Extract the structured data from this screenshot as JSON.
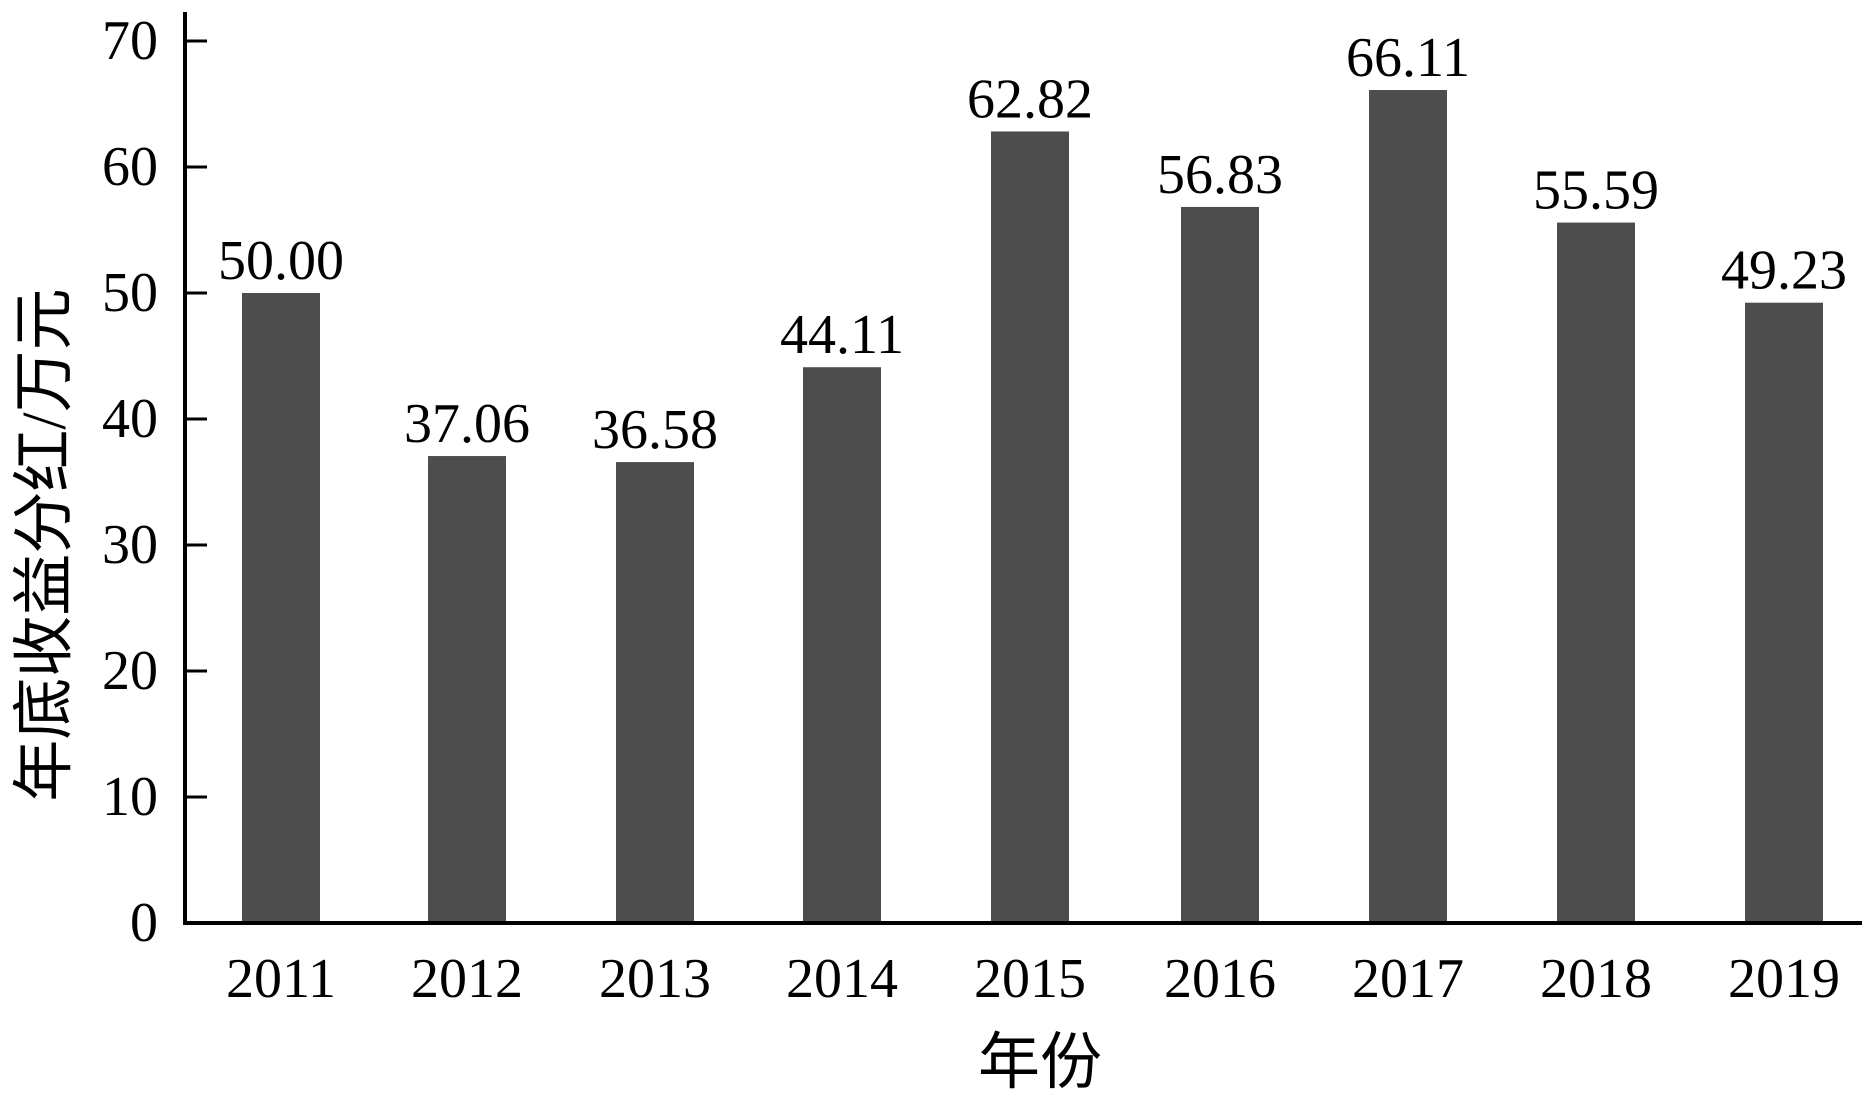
{
  "chart_data": {
    "type": "bar",
    "title": "",
    "xlabel": "年份",
    "ylabel": "年底收益分红/万元",
    "categories": [
      "2011",
      "2012",
      "2013",
      "2014",
      "2015",
      "2016",
      "2017",
      "2018",
      "2019"
    ],
    "values": [
      50.0,
      37.06,
      36.58,
      44.11,
      62.82,
      56.83,
      66.11,
      55.59,
      49.23
    ],
    "value_labels": [
      "50.00",
      "37.06",
      "36.58",
      "44.11",
      "62.82",
      "56.83",
      "66.11",
      "55.59",
      "49.23"
    ],
    "ylim": [
      0,
      70
    ],
    "yticks": [
      0,
      10,
      20,
      30,
      40,
      50,
      60,
      70
    ],
    "grid": false,
    "legend": "none",
    "colors": {
      "bar": "#4d4d4d",
      "axis": "#000000",
      "background": "#ffffff"
    }
  }
}
